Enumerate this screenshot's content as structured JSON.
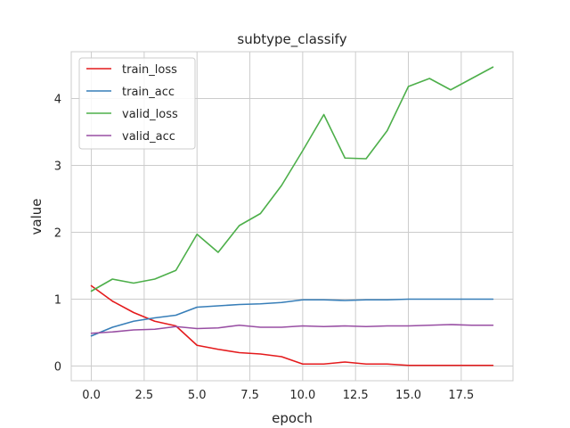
{
  "chart_data": {
    "type": "line",
    "title": "subtype_classify",
    "xlabel": "epoch",
    "ylabel": "value",
    "xlim": [
      -0.95,
      19.95
    ],
    "ylim": [
      -0.22,
      4.7
    ],
    "xticks": [
      0,
      2.5,
      5,
      7.5,
      10,
      12.5,
      15,
      17.5
    ],
    "xtick_labels": [
      "0.0",
      "2.5",
      "5.0",
      "7.5",
      "10.0",
      "12.5",
      "15.0",
      "17.5"
    ],
    "yticks": [
      0,
      1,
      2,
      3,
      4
    ],
    "ytick_labels": [
      "0",
      "1",
      "2",
      "3",
      "4"
    ],
    "grid": true,
    "legend_position": "top-left",
    "x": [
      0,
      1,
      2,
      3,
      4,
      5,
      6,
      7,
      8,
      9,
      10,
      11,
      12,
      13,
      14,
      15,
      16,
      17,
      18,
      19
    ],
    "series": [
      {
        "name": "train_loss",
        "color": "#e41a1c",
        "values": [
          1.2,
          0.97,
          0.8,
          0.67,
          0.6,
          0.31,
          0.25,
          0.2,
          0.18,
          0.14,
          0.03,
          0.03,
          0.06,
          0.03,
          0.03,
          0.01,
          0.01,
          0.01,
          0.01,
          0.01
        ]
      },
      {
        "name": "train_acc",
        "color": "#377eb8",
        "values": [
          0.45,
          0.58,
          0.67,
          0.72,
          0.76,
          0.88,
          0.9,
          0.92,
          0.93,
          0.95,
          0.99,
          0.99,
          0.98,
          0.99,
          0.99,
          1.0,
          1.0,
          1.0,
          1.0,
          1.0
        ]
      },
      {
        "name": "valid_loss",
        "color": "#4daf4a",
        "values": [
          1.12,
          1.3,
          1.24,
          1.3,
          1.43,
          1.97,
          1.7,
          2.1,
          2.28,
          2.7,
          3.22,
          3.76,
          3.11,
          3.1,
          3.52,
          4.18,
          4.3,
          4.13,
          4.3,
          4.47
        ]
      },
      {
        "name": "valid_acc",
        "color": "#984ea3",
        "values": [
          0.49,
          0.51,
          0.54,
          0.55,
          0.59,
          0.56,
          0.57,
          0.61,
          0.58,
          0.58,
          0.6,
          0.59,
          0.6,
          0.59,
          0.6,
          0.6,
          0.61,
          0.62,
          0.61,
          0.61
        ]
      }
    ]
  }
}
